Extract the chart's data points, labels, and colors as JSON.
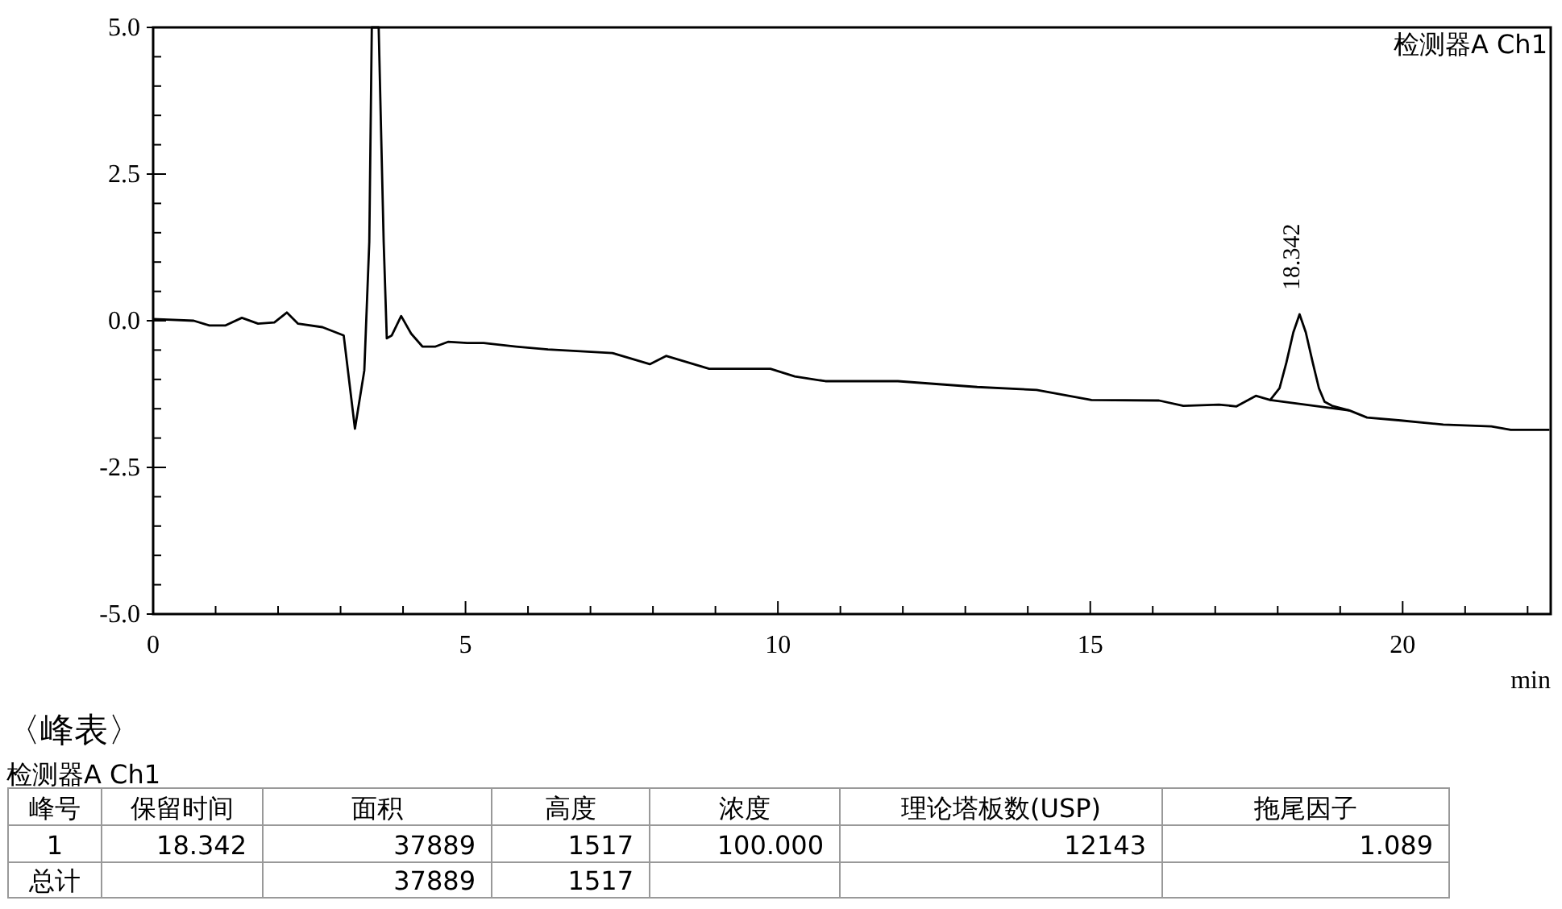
{
  "chart_data": {
    "type": "line",
    "xlabel": "min",
    "xlim": [
      0,
      22.37
    ],
    "xticks": [
      0,
      5,
      10,
      15,
      20
    ],
    "ylim": [
      -5,
      5
    ],
    "yticks": [
      {
        "value": -5,
        "label": "-5.0"
      },
      {
        "value": -2.5,
        "label": "-2.5"
      },
      {
        "value": 0,
        "label": "0.0"
      },
      {
        "value": 2.5,
        "label": "2.5"
      },
      {
        "value": 5,
        "label": "5.0"
      }
    ],
    "series": [
      {
        "color": "#000000",
        "x": [
          0,
          0.65,
          0.9,
          1.16,
          1.42,
          1.68,
          1.94,
          2.14,
          2.32,
          2.71,
          3.05,
          3.23,
          3.38,
          3.46,
          3.5,
          3.61,
          3.69,
          3.74,
          3.82,
          3.97,
          4.13,
          4.31,
          4.52,
          4.72,
          5.03,
          5.29,
          5.81,
          6.32,
          6.84,
          7.35,
          7.95,
          8.21,
          8.9,
          9.88,
          10.27,
          10.76,
          11.92,
          13.19,
          14.14,
          15.02,
          16.1,
          16.49,
          17.06,
          17.34,
          17.65,
          17.88,
          18.03,
          18.14,
          18.25,
          18.35,
          18.45,
          18.56,
          18.66,
          18.75,
          18.87,
          19.15,
          19.43,
          19.97,
          20.65,
          21.42,
          21.73,
          22.35
        ],
        "values": [
          0.03,
          0,
          -0.08,
          -0.08,
          0.05,
          -0.05,
          -0.03,
          0.14,
          -0.05,
          -0.11,
          -0.25,
          -1.84,
          -0.85,
          1.35,
          5.0,
          5.0,
          1.35,
          -0.3,
          -0.25,
          0.08,
          -0.22,
          -0.44,
          -0.44,
          -0.36,
          -0.38,
          -0.38,
          -0.44,
          -0.49,
          -0.52,
          -0.55,
          -0.74,
          -0.6,
          -0.82,
          -0.82,
          -0.95,
          -1.03,
          -1.03,
          -1.13,
          -1.18,
          -1.35,
          -1.36,
          -1.45,
          -1.43,
          -1.46,
          -1.28,
          -1.35,
          -1.15,
          -0.71,
          -0.2,
          0.11,
          -0.2,
          -0.71,
          -1.15,
          -1.38,
          -1.45,
          -1.53,
          -1.65,
          -1.7,
          -1.77,
          -1.8,
          -1.86,
          -1.86
        ]
      },
      {
        "color": "#000000",
        "x": [
          17.88,
          19.15
        ],
        "values": [
          -1.35,
          -1.53
        ]
      }
    ],
    "annotations": [
      {
        "text": "18.342",
        "x": 18.342,
        "y": 0.11
      },
      "检测器A Ch1",
      "〈峰表〉",
      "检测器A Ch1",
      "峰号",
      "保留时间",
      "面积",
      "高度",
      "浓度",
      "理论塔板数(USP)",
      "拖尾因子",
      "1",
      "18.342",
      "37889",
      "1517",
      "100.000",
      "12143",
      "1.089",
      "总计",
      "37889",
      "1517"
    ],
    "grid": false
  }
}
